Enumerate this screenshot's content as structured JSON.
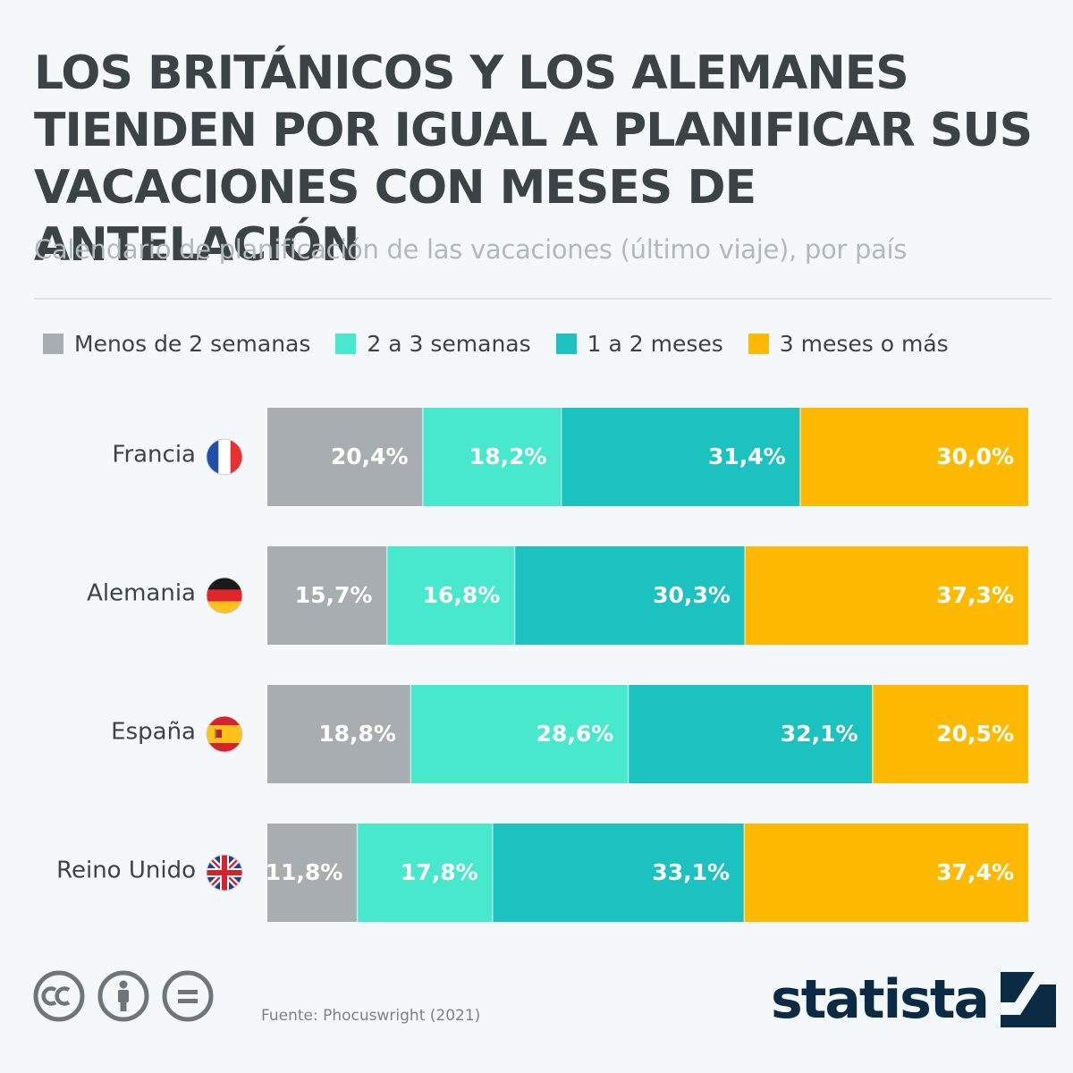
{
  "header": {
    "title": "LOS BRITÁNICOS Y LOS ALEMANES TIENDEN POR IGUAL A PLANIFICAR SUS VACACIONES CON MESES DE ANTELACIÓN",
    "subtitle": "Calendario de planificación de las vacaciones (último viaje), por país"
  },
  "chart_data": {
    "type": "bar",
    "orientation": "horizontal",
    "stacked": true,
    "categories": [
      "Francia",
      "Alemania",
      "España",
      "Reino Unido"
    ],
    "category_icons": [
      "flag-france-icon",
      "flag-germany-icon",
      "flag-spain-icon",
      "flag-uk-icon"
    ],
    "series": [
      {
        "name": "Menos de 2 semanas",
        "color": "#a8adb1",
        "values": [
          20.4,
          15.7,
          18.8,
          11.8
        ],
        "labels": [
          "20,4%",
          "15,7%",
          "18,8%",
          "11,8%"
        ]
      },
      {
        "name": "2 a 3 semanas",
        "color": "#48e8cc",
        "values": [
          18.2,
          16.8,
          28.6,
          17.8
        ],
        "labels": [
          "18,2%",
          "16,8%",
          "28,6%",
          "17,8%"
        ]
      },
      {
        "name": "1 a 2 meses",
        "color": "#1cc2bf",
        "values": [
          31.4,
          30.3,
          32.1,
          33.1
        ],
        "labels": [
          "31,4%",
          "30,3%",
          "32,1%",
          "33,1%"
        ]
      },
      {
        "name": "3 meses o más",
        "color": "#ffb900",
        "values": [
          30.0,
          37.3,
          20.5,
          37.4
        ],
        "labels": [
          "30,0%",
          "37,3%",
          "20,5%",
          "37,4%"
        ]
      }
    ],
    "legend_position": "top-left",
    "grid": false
  },
  "footer": {
    "source": "Fuente: Phocuswright (2021)",
    "logo_text": "statista",
    "license_icons": [
      "cc-icon",
      "attribution-icon",
      "no-derivatives-icon"
    ]
  }
}
